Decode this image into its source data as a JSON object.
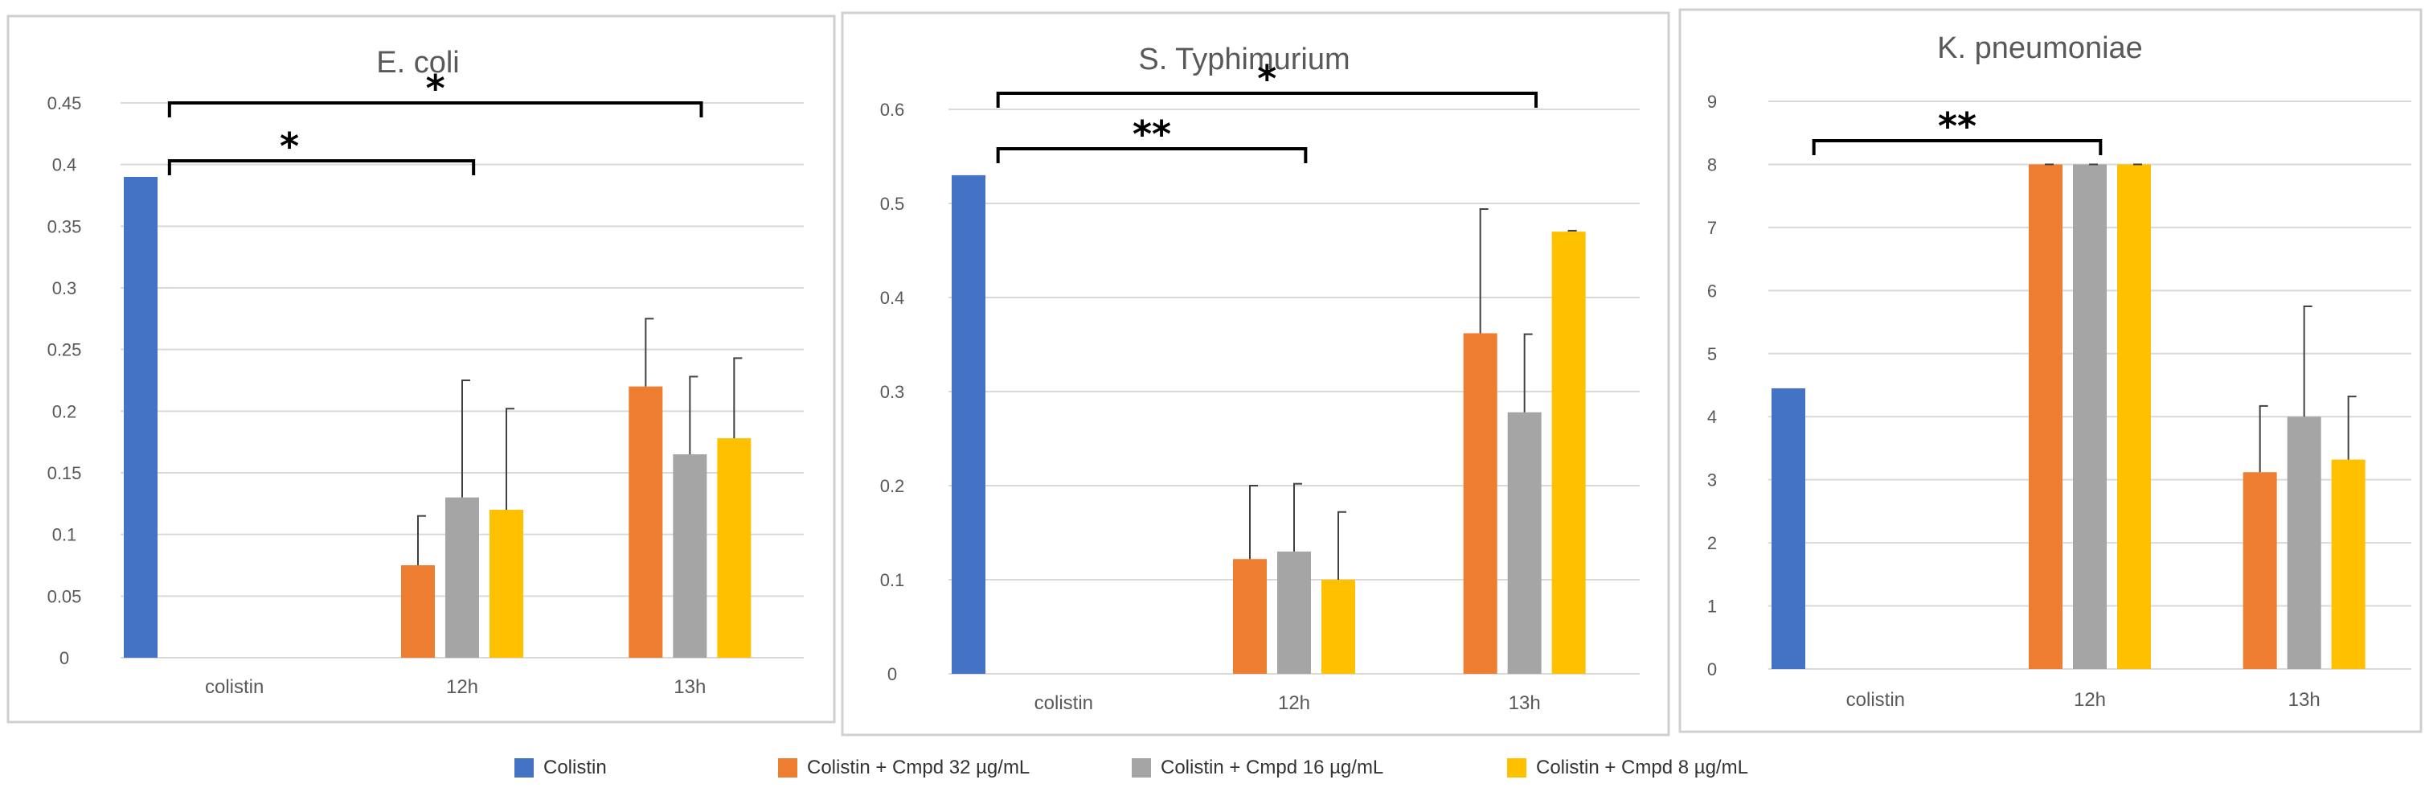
{
  "legend": {
    "items": [
      {
        "label": "Colistin",
        "color": "#4472c4"
      },
      {
        "label": "Colistin + Cmpd 32 µg/mL",
        "color": "#ed7d31"
      },
      {
        "label": "Colistin + Cmpd 16 µg/mL",
        "color": "#a5a5a5"
      },
      {
        "label": "Colistin + Cmpd 8 µg/mL",
        "color": "#ffc000"
      }
    ]
  },
  "chart_data": [
    {
      "type": "bar",
      "title": "E. coli",
      "categories": [
        "colistin",
        "12h",
        "13h"
      ],
      "ylim": [
        0,
        0.45
      ],
      "yticks": [
        "0",
        "0.05",
        "0.1",
        "0.15",
        "0.2",
        "0.25",
        "0.3",
        "0.35",
        "0.4",
        "0.45"
      ],
      "grid": true,
      "series": [
        {
          "name": "Colistin",
          "values": [
            0.39,
            null,
            null
          ],
          "errors": [
            null,
            null,
            null
          ]
        },
        {
          "name": "Colistin + Cmpd 32 µg/mL",
          "values": [
            null,
            0.075,
            0.22
          ],
          "errors": [
            null,
            0.04,
            0.055
          ]
        },
        {
          "name": "Colistin + Cmpd 16 µg/mL",
          "values": [
            null,
            0.13,
            0.165
          ],
          "errors": [
            null,
            0.095,
            0.063
          ]
        },
        {
          "name": "Colistin + Cmpd 8 µg/mL",
          "values": [
            null,
            0.12,
            0.178
          ],
          "errors": [
            null,
            0.082,
            0.065
          ]
        }
      ],
      "annotations": [
        {
          "text": "*",
          "from": "colistin",
          "to": "13h"
        },
        {
          "text": "*",
          "from": "colistin",
          "to": "12h"
        }
      ]
    },
    {
      "type": "bar",
      "title": "S. Typhimurium",
      "categories": [
        "colistin",
        "12h",
        "13h"
      ],
      "ylim": [
        0,
        0.6
      ],
      "yticks": [
        "0",
        "0.1",
        "0.2",
        "0.3",
        "0.4",
        "0.5",
        "0.6"
      ],
      "grid": true,
      "series": [
        {
          "name": "Colistin",
          "values": [
            0.53,
            null,
            null
          ],
          "errors": [
            null,
            null,
            null
          ]
        },
        {
          "name": "Colistin + Cmpd 32 µg/mL",
          "values": [
            null,
            0.122,
            0.362
          ],
          "errors": [
            null,
            0.078,
            0.132
          ]
        },
        {
          "name": "Colistin + Cmpd 16 µg/mL",
          "values": [
            null,
            0.13,
            0.278
          ],
          "errors": [
            null,
            0.072,
            0.083
          ]
        },
        {
          "name": "Colistin + Cmpd 8 µg/mL",
          "values": [
            null,
            0.1,
            0.47
          ],
          "errors": [
            null,
            0.072,
            0.001
          ]
        }
      ],
      "annotations": [
        {
          "text": "*",
          "from": "colistin",
          "to": "13h"
        },
        {
          "text": "**",
          "from": "colistin",
          "to": "12h"
        }
      ]
    },
    {
      "type": "bar",
      "title": "K. pneumoniae",
      "categories": [
        "colistin",
        "12h",
        "13h"
      ],
      "ylim": [
        0,
        9
      ],
      "yticks": [
        "0",
        "1",
        "2",
        "3",
        "4",
        "5",
        "6",
        "7",
        "8",
        "9"
      ],
      "grid": true,
      "series": [
        {
          "name": "Colistin",
          "values": [
            4.45,
            null,
            null
          ],
          "errors": [
            null,
            null,
            null
          ]
        },
        {
          "name": "Colistin + Cmpd 32 µg/mL",
          "values": [
            null,
            8,
            3.12
          ],
          "errors": [
            null,
            0,
            1.05
          ]
        },
        {
          "name": "Colistin + Cmpd 16 µg/mL",
          "values": [
            null,
            8,
            4.0
          ],
          "errors": [
            null,
            0,
            1.75
          ]
        },
        {
          "name": "Colistin + Cmpd 8 µg/mL",
          "values": [
            null,
            8,
            3.32
          ],
          "errors": [
            null,
            0,
            1.0
          ]
        }
      ],
      "annotations": [
        {
          "text": "**",
          "from": "colistin",
          "to": "12h"
        }
      ]
    }
  ]
}
